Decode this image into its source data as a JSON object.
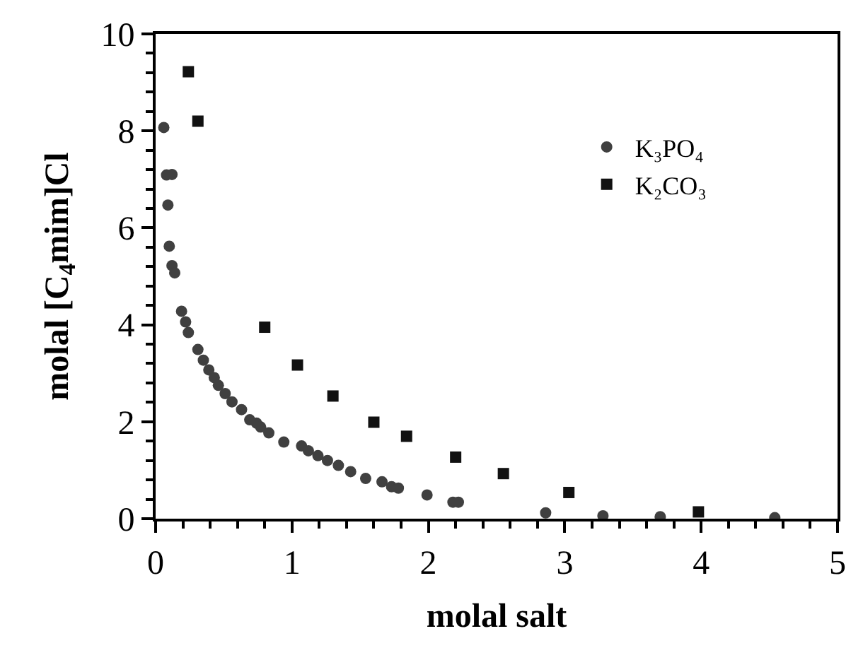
{
  "chart_data": {
    "type": "scatter",
    "xlabel": "molal salt",
    "ylabel": "molal [C$_{4}$mim]Cl",
    "xlim": [
      0,
      5
    ],
    "ylim": [
      0,
      10
    ],
    "xticks": [
      0,
      1,
      2,
      3,
      4,
      5
    ],
    "yticks": [
      0,
      2,
      4,
      6,
      8,
      10
    ],
    "grid": false,
    "legend": "top right",
    "marker": "circle",
    "series": [
      {
        "name": "K₃PO₄",
        "color": "#404040",
        "x": [
          0.06,
          0.08,
          0.12,
          0.09,
          0.1,
          0.12,
          0.14,
          0.19,
          0.22,
          0.24,
          0.31,
          0.35,
          0.39,
          0.43,
          0.46,
          0.51,
          0.56,
          0.63,
          0.69,
          0.74,
          0.77,
          0.83,
          0.94,
          1.07,
          1.12,
          1.19,
          1.26,
          1.34,
          1.43,
          1.54,
          1.66,
          1.73,
          1.78,
          1.99,
          2.18,
          2.22,
          2.86,
          3.28,
          3.7,
          4.54
        ],
        "values": [
          8.07,
          7.09,
          7.1,
          6.47,
          5.62,
          5.22,
          5.07,
          4.28,
          4.06,
          3.84,
          3.49,
          3.27,
          3.07,
          2.91,
          2.75,
          2.58,
          2.41,
          2.25,
          2.04,
          1.97,
          1.89,
          1.77,
          1.58,
          1.5,
          1.4,
          1.3,
          1.2,
          1.1,
          0.97,
          0.83,
          0.76,
          0.66,
          0.63,
          0.49,
          0.34,
          0.34,
          0.12,
          0.06,
          0.04,
          0.02
        ]
      },
      {
        "name": "K₂CO₃",
        "color": "#111111",
        "marker": "square",
        "x": [
          0.24,
          0.31,
          0.8,
          1.04,
          1.3,
          1.6,
          1.84,
          2.2,
          2.55,
          3.03,
          3.98
        ],
        "values": [
          9.22,
          8.2,
          3.95,
          3.17,
          2.53,
          1.99,
          1.7,
          1.27,
          0.93,
          0.54,
          0.14
        ]
      }
    ]
  }
}
